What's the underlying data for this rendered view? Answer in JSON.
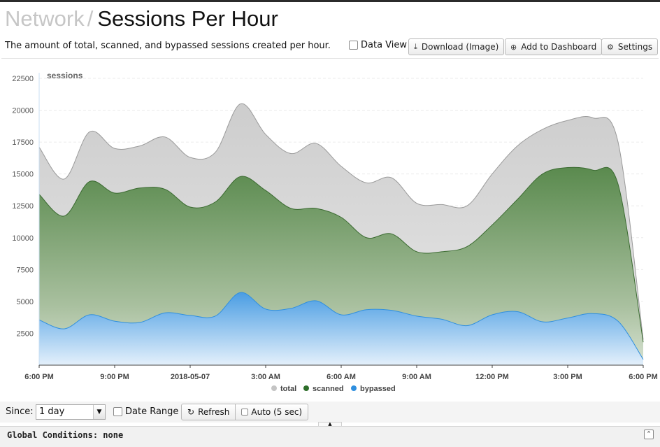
{
  "header": {
    "breadcrumb": "Network",
    "separator": "/",
    "title": "Sessions Per Hour",
    "description": "The amount of total, scanned, and bypassed sessions created per hour."
  },
  "toolbar": {
    "data_view_label": "Data View",
    "download_label": "Download (Image)",
    "add_dashboard_label": "Add to Dashboard",
    "settings_label": "Settings"
  },
  "controls": {
    "since_label": "Since:",
    "since_value": "1 day",
    "date_range_label": "Date Range",
    "refresh_label": "Refresh",
    "auto_label": "Auto (5 sec)"
  },
  "footer": {
    "global_conditions": "Global Conditions: none"
  },
  "colors": {
    "total": "#c4c4c4",
    "scanned": "#2e7d2e",
    "bypassed": "#2f8fdf"
  },
  "chart_data": {
    "type": "area",
    "title": "",
    "ylabel": "sessions",
    "ylim": [
      0,
      22500
    ],
    "yticks": [
      2500,
      5000,
      7500,
      10000,
      12500,
      15000,
      17500,
      20000,
      22500
    ],
    "xticks": [
      "6:00 PM",
      "9:00 PM",
      "2018-05-07",
      "3:00 AM",
      "6:00 AM",
      "9:00 AM",
      "12:00 PM",
      "3:00 PM",
      "6:00 PM"
    ],
    "x": [
      "6:00 PM",
      "7:00 PM",
      "8:00 PM",
      "9:00 PM",
      "10:00 PM",
      "11:00 PM",
      "12:00 AM",
      "1:00 AM",
      "2:00 AM",
      "3:00 AM",
      "4:00 AM",
      "5:00 AM",
      "6:00 AM",
      "7:00 AM",
      "8:00 AM",
      "9:00 AM",
      "10:00 AM",
      "11:00 AM",
      "12:00 PM",
      "1:00 PM",
      "2:00 PM",
      "3:00 PM",
      "4:00 PM",
      "5:00 PM",
      "6:00 PM"
    ],
    "legend": "bottom-center",
    "grid": true,
    "series": [
      {
        "name": "total",
        "values": [
          17100,
          14600,
          18300,
          17000,
          17200,
          17900,
          16300,
          16700,
          20500,
          18100,
          16600,
          17400,
          15600,
          14300,
          14700,
          12700,
          12600,
          12500,
          15000,
          17200,
          18500,
          19200,
          19400,
          17500,
          2000
        ]
      },
      {
        "name": "scanned",
        "values": [
          13400,
          11700,
          14400,
          13500,
          13900,
          13800,
          12400,
          12800,
          14800,
          13700,
          12300,
          12300,
          11600,
          10000,
          10300,
          8900,
          8900,
          9300,
          11000,
          13000,
          15000,
          15500,
          15300,
          14200,
          1800
        ]
      },
      {
        "name": "bypassed",
        "values": [
          3550,
          2850,
          3950,
          3450,
          3350,
          4100,
          3900,
          3850,
          5700,
          4400,
          4450,
          5050,
          3950,
          4350,
          4300,
          3850,
          3600,
          3100,
          3950,
          4200,
          3400,
          3700,
          4050,
          3450,
          450
        ]
      }
    ]
  }
}
